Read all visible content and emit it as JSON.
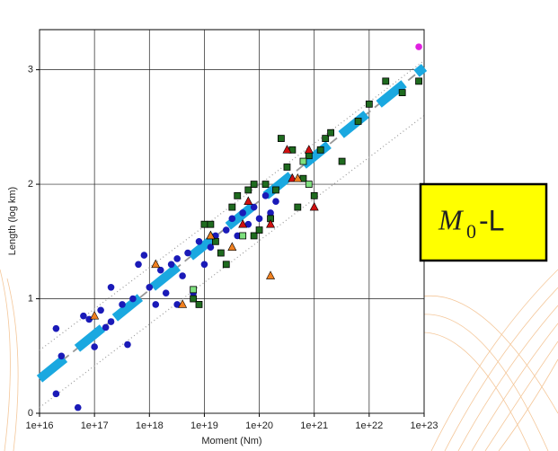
{
  "chart_data": {
    "type": "scatter",
    "x_label": "Moment (Nm)",
    "y_label": "Length (log km)",
    "xscale": "log",
    "xlim": [
      1e+16,
      1e+23
    ],
    "ylim": [
      0,
      3.35
    ],
    "xticks": [
      {
        "value": 1e+16,
        "label": "1e+16"
      },
      {
        "value": 1e+17,
        "label": "1e+17"
      },
      {
        "value": 1e+18,
        "label": "1e+18"
      },
      {
        "value": 1e+19,
        "label": "1e+19"
      },
      {
        "value": 1e+20,
        "label": "1e+20"
      },
      {
        "value": 1e+21,
        "label": "1e+21"
      },
      {
        "value": 1e+22,
        "label": "1e+22"
      },
      {
        "value": 1e+23,
        "label": "1e+23"
      }
    ],
    "yticks": [
      0,
      1,
      2,
      3
    ],
    "grid": true,
    "series": [
      {
        "color": "#1a1ab8",
        "marker": "circle",
        "x": [
          2e+16,
          2e+16,
          5e+16,
          6.3e+16,
          8e+16,
          1e+17,
          1.3e+17,
          1.6e+17,
          2e+17,
          3.2e+17,
          4e+17,
          5e+17,
          6.3e+17,
          8e+17,
          1e+18,
          1.3e+18,
          1.6e+18,
          2e+18,
          2.5e+18,
          3.2e+18,
          4e+18,
          5e+18,
          6.3e+18,
          8e+18,
          1e+19,
          1.3e+19,
          1.6e+19,
          2e+19,
          2.5e+19,
          3.2e+19,
          4e+19,
          5e+19,
          6.3e+19,
          8e+19,
          1e+20,
          1.3e+20,
          1.6e+20,
          2e+20,
          3.2e+18,
          2e+17,
          2.5e+16
        ],
        "values": [
          0.74,
          0.17,
          0.05,
          0.85,
          0.82,
          0.58,
          0.9,
          0.75,
          0.8,
          0.95,
          0.6,
          1.0,
          1.3,
          1.38,
          1.1,
          0.95,
          1.25,
          1.05,
          1.3,
          1.35,
          1.2,
          1.4,
          1.05,
          1.5,
          1.3,
          1.45,
          1.55,
          1.4,
          1.6,
          1.7,
          1.55,
          1.75,
          1.65,
          1.8,
          1.7,
          1.9,
          1.75,
          1.85,
          0.95,
          1.1,
          0.5
        ]
      },
      {
        "color": "#1f6b1f",
        "marker": "square",
        "x": [
          6.3e+18,
          1e+19,
          1.3e+19,
          1.6e+19,
          2e+19,
          3.2e+19,
          4e+19,
          6.3e+19,
          8e+19,
          1e+20,
          1.3e+20,
          1.6e+20,
          2e+20,
          2.5e+20,
          3.2e+20,
          4e+20,
          5e+20,
          6.3e+20,
          8e+20,
          1e+21,
          1.3e+21,
          1.6e+21,
          2e+21,
          3.2e+21,
          6.3e+21,
          1e+22,
          2e+22,
          4e+22,
          8e+22,
          8e+19,
          8e+18,
          2.5e+19
        ],
        "values": [
          1.0,
          1.65,
          1.65,
          1.5,
          1.4,
          1.8,
          1.9,
          1.95,
          1.55,
          1.6,
          2.0,
          1.7,
          1.95,
          2.4,
          2.15,
          2.3,
          1.8,
          2.05,
          2.25,
          1.9,
          2.3,
          2.4,
          2.45,
          2.2,
          2.55,
          2.7,
          2.9,
          2.8,
          2.9,
          2.0,
          0.95,
          1.3
        ]
      },
      {
        "color": "#d01010",
        "marker": "triangle",
        "x": [
          5e+19,
          6.3e+19,
          1.6e+20,
          3.2e+20,
          8e+20,
          1e+21,
          1.3e+19,
          4e+20
        ],
        "values": [
          1.65,
          1.85,
          1.65,
          2.3,
          2.3,
          1.8,
          1.55,
          2.05
        ]
      },
      {
        "color": "#f08020",
        "marker": "triangle",
        "x": [
          1e+17,
          1.3e+18,
          4e+18,
          1.3e+19,
          1.6e+20,
          5e+20,
          3.2e+19
        ],
        "values": [
          0.85,
          1.3,
          0.95,
          1.55,
          1.2,
          2.05,
          1.45
        ]
      },
      {
        "color": "#7ee07e",
        "marker": "square",
        "x": [
          6.3e+18,
          5e+19,
          8e+20,
          6.3e+20
        ],
        "values": [
          1.08,
          1.55,
          2.0,
          2.2
        ]
      },
      {
        "color": "#e020e0",
        "marker": "circle",
        "x": [
          8e+22
        ],
        "values": [
          3.2
        ]
      }
    ],
    "lines": [
      {
        "color": "#999999",
        "style": "dotted",
        "x": [
          1e+16,
          1e+23
        ],
        "values": [
          0.55,
          3.08
        ]
      },
      {
        "color": "#999999",
        "style": "dotted",
        "x": [
          1e+16,
          1e+23
        ],
        "values": [
          0.05,
          2.6
        ]
      },
      {
        "color": "#999999",
        "style": "dashed",
        "x": [
          1e+16,
          1e+23
        ],
        "values": [
          0.3,
          3.02
        ]
      },
      {
        "color": "#1aa8e0",
        "style": "thick-dashed",
        "x": [
          1e+16,
          1e+23
        ],
        "values": [
          0.3,
          3.02
        ]
      }
    ],
    "annotation": {
      "base": "M",
      "sub": "0",
      "rest": "-L"
    }
  }
}
